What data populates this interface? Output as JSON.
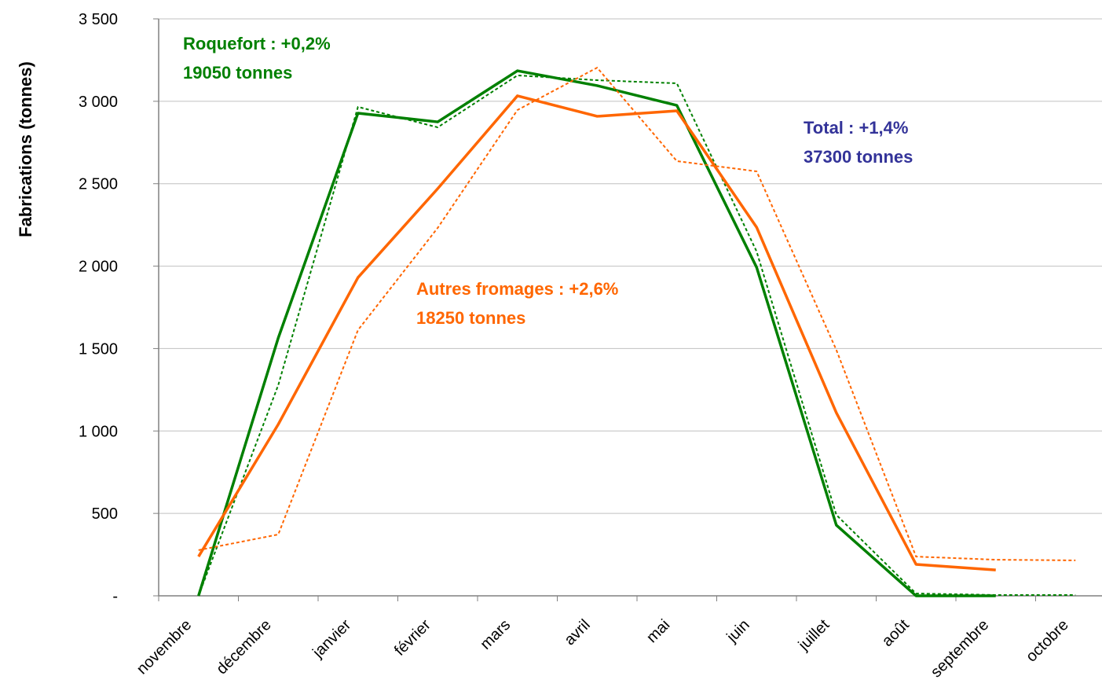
{
  "chart_data": {
    "type": "line",
    "y_label": "Fabrications (tonnes)",
    "categories": [
      "novembre",
      "décembre",
      "janvier",
      "février",
      "mars",
      "avril",
      "mai",
      "juin",
      "juillet",
      "août",
      "septembre",
      "octobre"
    ],
    "series": [
      {
        "color": "#008000",
        "style": "solid",
        "values": [
          0,
          1564,
          2928,
          2875,
          3185,
          3095,
          2975,
          1993,
          429,
          0,
          0,
          null
        ]
      },
      {
        "color": "#008000",
        "style": "dotted",
        "values": [
          0,
          1278,
          2966,
          2842,
          3157,
          3128,
          3109,
          2089,
          491,
          14,
          5,
          5
        ]
      },
      {
        "color": "#ff6600",
        "style": "solid",
        "values": [
          238,
          1040,
          1931,
          2470,
          3033,
          2909,
          2942,
          2236,
          1111,
          191,
          157,
          null
        ]
      },
      {
        "color": "#ff6600",
        "style": "dotted",
        "values": [
          277,
          372,
          1612,
          2232,
          2947,
          3204,
          2637,
          2575,
          1492,
          238,
          219,
          215
        ]
      }
    ],
    "ylim": [
      0,
      3500
    ],
    "yticks": [
      {
        "value": 0,
        "label": "-"
      },
      500,
      {
        "value": 1000,
        "label": "1 000"
      },
      {
        "value": 1500,
        "label": "1 500"
      },
      {
        "value": 2000,
        "label": "2 000"
      },
      {
        "value": 2500,
        "label": "2 500"
      },
      {
        "value": 3000,
        "label": "3 000"
      },
      {
        "value": 3500,
        "label": "3 500"
      }
    ],
    "grid": true,
    "annotations": [
      {
        "color": "#008000",
        "lines": [
          "Roquefort : +0,2%",
          "19050 tonnes"
        ]
      },
      {
        "color": "#333399",
        "lines": [
          "Total : +1,4%",
          "37300 tonnes"
        ]
      },
      {
        "color": "#ff6600",
        "lines": [
          "Autres fromages : +2,6%",
          "18250 tonnes"
        ]
      }
    ]
  }
}
